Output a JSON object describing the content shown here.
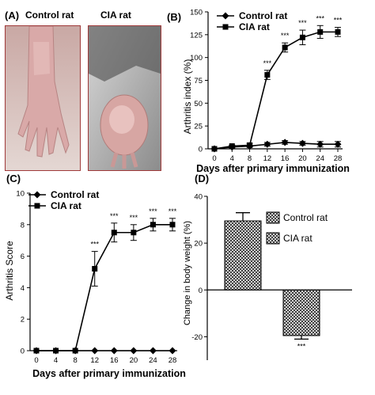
{
  "panelA": {
    "label": "(A)",
    "photos": [
      {
        "title": "Control rat"
      },
      {
        "title": "CIA rat"
      }
    ]
  },
  "chart_data": [
    {
      "panel": "(B)",
      "type": "line",
      "xlabel": "Days after primary immunization",
      "ylabel": "Arthritis index (%)",
      "x": [
        0,
        4,
        8,
        12,
        16,
        20,
        24,
        28
      ],
      "ylim": [
        0,
        150
      ],
      "yticks": [
        0,
        25,
        50,
        75,
        100,
        125,
        150
      ],
      "legend_position": "top-left",
      "series": [
        {
          "name": "Control rat",
          "marker": "diamond",
          "values": [
            0,
            2,
            3,
            5,
            7,
            6,
            5,
            5
          ],
          "errors": [
            0,
            1,
            1,
            2,
            2,
            2,
            3,
            3
          ]
        },
        {
          "name": "CIA rat",
          "marker": "square",
          "values": [
            0,
            3,
            4,
            81,
            111,
            122,
            128,
            128
          ],
          "errors": [
            0,
            1,
            2,
            5,
            5,
            8,
            7,
            5
          ],
          "significance": [
            "",
            "",
            "",
            "***",
            "***",
            "***",
            "***",
            "***"
          ]
        }
      ]
    },
    {
      "panel": "(C)",
      "type": "line",
      "xlabel": "Days after primary immunization",
      "ylabel": "Arthritis Score",
      "x": [
        0,
        4,
        8,
        12,
        16,
        20,
        24,
        28
      ],
      "ylim": [
        0,
        10
      ],
      "yticks": [
        0,
        2,
        4,
        6,
        8,
        10
      ],
      "legend_position": "top-left",
      "series": [
        {
          "name": "Control rat",
          "marker": "diamond",
          "values": [
            0,
            0,
            0,
            0,
            0,
            0,
            0,
            0
          ],
          "errors": [
            0,
            0,
            0,
            0,
            0,
            0,
            0,
            0
          ]
        },
        {
          "name": "CIA rat",
          "marker": "square",
          "values": [
            0,
            0,
            0,
            5.2,
            7.5,
            7.5,
            8.0,
            8.0
          ],
          "errors": [
            0,
            0,
            0,
            1.1,
            0.6,
            0.5,
            0.4,
            0.4
          ],
          "significance": [
            "",
            "",
            "",
            "***",
            "***",
            "***",
            "***",
            "***"
          ]
        }
      ]
    },
    {
      "panel": "(D)",
      "type": "bar",
      "ylabel": "Change in body weight (%)",
      "ylim": [
        -30,
        40
      ],
      "yticks": [
        -20,
        0,
        20,
        40
      ],
      "legend_position": "top-right",
      "categories": [
        "Control rat",
        "CIA rat"
      ],
      "values": [
        29.5,
        -19.5
      ],
      "errors": [
        3.5,
        1.5
      ],
      "significance": [
        "",
        "***"
      ]
    }
  ]
}
